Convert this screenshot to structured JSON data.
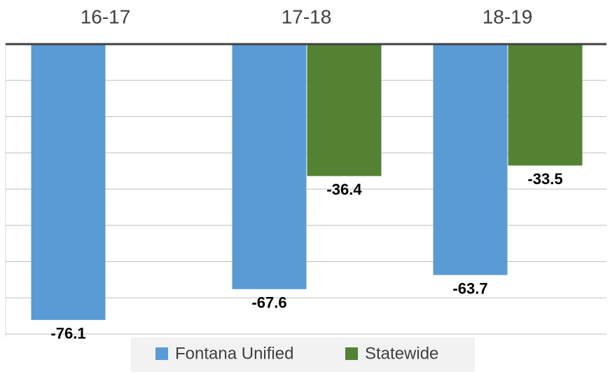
{
  "chart_data": {
    "type": "bar",
    "categories": [
      "16-17",
      "17-18",
      "18-19"
    ],
    "series": [
      {
        "name": "Fontana Unified",
        "color": "#5b9bd5",
        "values": [
          -76.1,
          -67.6,
          -63.7
        ]
      },
      {
        "name": "Statewide",
        "color": "#548235",
        "values": [
          null,
          -36.4,
          -33.5
        ]
      }
    ],
    "ylim": [
      -80,
      0
    ],
    "yticks": [
      0,
      -10,
      -20,
      -30,
      -40,
      -50,
      -60,
      -70,
      -80
    ],
    "grid": true,
    "legend": "bottom"
  }
}
